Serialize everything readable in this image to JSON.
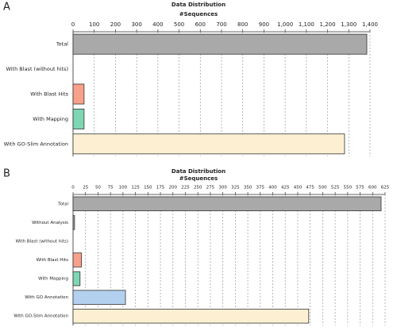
{
  "chart_data": [
    {
      "type": "bar",
      "panel": "A",
      "title": "Data Distribution",
      "x_label": "#Sequences",
      "categories": [
        "Total",
        "With Blast (without hits)",
        "With Blast Hits",
        "With Mapping",
        "With GO-Slim Annotation"
      ],
      "values": [
        1385,
        0,
        52,
        52,
        1280
      ],
      "colors": [
        "#a9a9a9",
        "#a9a9a9",
        "#f7a18a",
        "#7fd6b2",
        "#fdf0d2"
      ],
      "xlim": [
        0,
        1400
      ],
      "xticks": [
        0,
        100,
        200,
        300,
        400,
        500,
        600,
        700,
        800,
        900,
        {
          "value": 1000,
          "label": "1,000"
        },
        {
          "value": 1100,
          "label": "1,100"
        },
        {
          "value": 1200,
          "label": "1,200"
        },
        {
          "value": 1300,
          "label": "1,300"
        },
        {
          "value": 1400,
          "label": "1,400"
        }
      ],
      "grid": true
    },
    {
      "type": "bar",
      "panel": "B",
      "title": "Data Distribution",
      "x_label": "#Sequences",
      "categories": [
        "Total",
        "Without Analysis",
        "With Blast (without hits)",
        "With Blast Hits",
        "With Mapping",
        "With GO Annotation",
        "With GO-Slim Annotation"
      ],
      "values": [
        617,
        3,
        0,
        17,
        14,
        105,
        472
      ],
      "colors": [
        "#a9a9a9",
        "#a9a9a9",
        "#a9a9a9",
        "#f7a18a",
        "#7fd6b2",
        "#b3d0ef",
        "#fdf0d2"
      ],
      "xlim": [
        0,
        625
      ],
      "xticks": [
        0,
        25,
        50,
        75,
        100,
        125,
        150,
        175,
        200,
        225,
        250,
        275,
        300,
        325,
        350,
        375,
        400,
        425,
        450,
        475,
        500,
        525,
        550,
        575,
        600,
        625
      ],
      "grid": true
    }
  ]
}
